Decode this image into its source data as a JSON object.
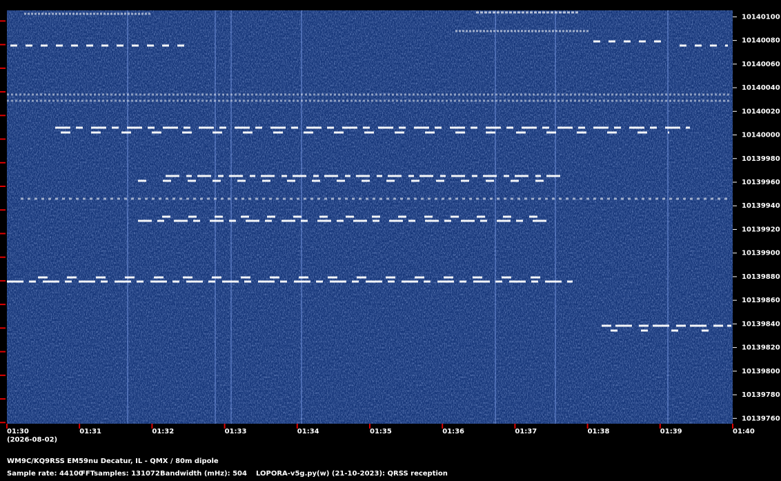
{
  "chart_data": {
    "type": "spectrogram",
    "date": "(2026-08-02)",
    "ylim": [
      10139759,
      10140109
    ],
    "yticks": [
      10140100,
      10140080,
      10140060,
      10140040,
      10140020,
      10140000,
      10139980,
      10139960,
      10139940,
      10139920,
      10139900,
      10139880,
      10139860,
      10139840,
      10139820,
      10139800,
      10139780,
      10139760
    ],
    "xlim": [
      90,
      100
    ],
    "xticks": [
      {
        "value": 90,
        "label": "01:30"
      },
      {
        "value": 91,
        "label": "01:31"
      },
      {
        "value": 92,
        "label": "01:32"
      },
      {
        "value": 93,
        "label": "01:33"
      },
      {
        "value": 94,
        "label": "01:34"
      },
      {
        "value": 95,
        "label": "01:35"
      },
      {
        "value": 96,
        "label": "01:36"
      },
      {
        "value": 97,
        "label": "01:37"
      },
      {
        "value": 98,
        "label": "01:38"
      },
      {
        "value": 99,
        "label": "01:39"
      },
      {
        "value": 100,
        "label": "01:40"
      }
    ],
    "tick_color": "#e00000",
    "background_color": "#17377a"
  },
  "footer": {
    "station": "WM9C/KQ9RSS EM59nu Decatur, IL - QMX / 80m dipole",
    "sample_rate": "Sample rate: 44100",
    "fft_samples": "FFTsamples: 131072",
    "bandwidth": "Bandwidth (mHz): 504",
    "software": "LOPORA-v5g.py(w) (21-10-2023): QRSS reception"
  }
}
